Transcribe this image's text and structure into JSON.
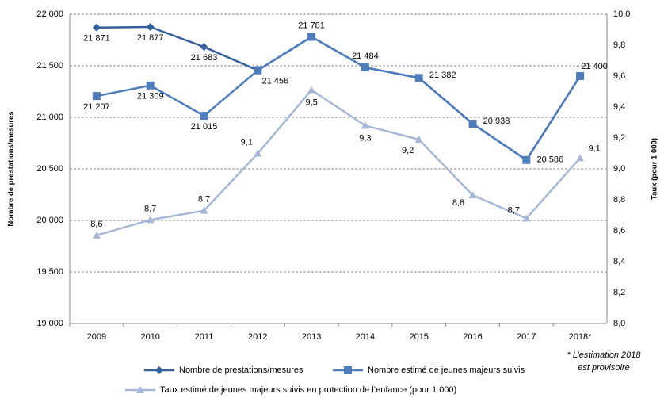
{
  "chart_data": {
    "type": "line",
    "categories": [
      "2009",
      "2010",
      "2011",
      "2012",
      "2013",
      "2014",
      "2015",
      "2016",
      "2017",
      "2018*"
    ],
    "ylabel": "Nombre de prestations/mesures",
    "y2label": "Taux  (pour 1 000)",
    "ylim": [
      19000,
      22000
    ],
    "yticks": [
      {
        "value": 19000,
        "label": "19 000"
      },
      {
        "value": 19500,
        "label": "19 500"
      },
      {
        "value": 20000,
        "label": "20 000"
      },
      {
        "value": 20500,
        "label": "20 500"
      },
      {
        "value": 21000,
        "label": "21 000"
      },
      {
        "value": 21500,
        "label": "21 500"
      },
      {
        "value": 22000,
        "label": "22 000"
      }
    ],
    "y2lim": [
      8,
      10
    ],
    "y2ticks": [
      {
        "value": 8,
        "label": "8,0"
      },
      {
        "value": 8.2,
        "label": "8,2"
      },
      {
        "value": 8.4,
        "label": "8,4"
      },
      {
        "value": 8.6,
        "label": "8,6"
      },
      {
        "value": 8.8,
        "label": "8,8"
      },
      {
        "value": 9,
        "label": "9,0"
      },
      {
        "value": 9.2,
        "label": "9,2"
      },
      {
        "value": 9.4,
        "label": "9,4"
      },
      {
        "value": 9.6,
        "label": "9,6"
      },
      {
        "value": 9.8,
        "label": "9,8"
      },
      {
        "value": 10,
        "label": "10,0"
      }
    ],
    "grid": true,
    "series": [
      {
        "name": "Nombre de prestations/mesures",
        "color": "#35609c",
        "marker": "diamond",
        "values": [
          21871,
          21877,
          21683,
          21456,
          21781,
          21484,
          21382,
          20938,
          20586,
          21400
        ],
        "value_labels": [
          "21 871",
          "21 877",
          "21 683",
          "21 456",
          "21 781",
          "21 484",
          "21 382",
          "20 938",
          "20 586",
          "21 400"
        ]
      },
      {
        "name": "Nombre estimé de jeunes majeurs suivis",
        "color": "#4f7cba",
        "marker": "square",
        "values": [
          21207,
          21309,
          21015,
          21456,
          21781,
          21484,
          21382,
          20938,
          20586,
          21400
        ],
        "value_labels": [
          "21 207",
          "21 309",
          "21 015",
          "21 456",
          "21 781",
          "21 484",
          "21 382",
          "20 938",
          "20 586",
          "21 400"
        ]
      },
      {
        "name": "Taux estimé de jeunes majeurs suivis en protection de l’enfance (pour 1 000)",
        "color": "#a6b8d6",
        "marker": "triangle",
        "axis": "y2",
        "values": [
          8.57,
          8.67,
          8.73,
          9.1,
          9.51,
          9.28,
          9.19,
          8.83,
          8.68,
          9.07
        ],
        "value_labels": [
          "8,6",
          "8,7",
          "8,7",
          "9,1",
          "9,5",
          "9,3",
          "9,2",
          "8,8",
          "8,7",
          "9,1"
        ]
      }
    ],
    "note": [
      "* L’estimation 2018",
      "est provisoire"
    ]
  }
}
